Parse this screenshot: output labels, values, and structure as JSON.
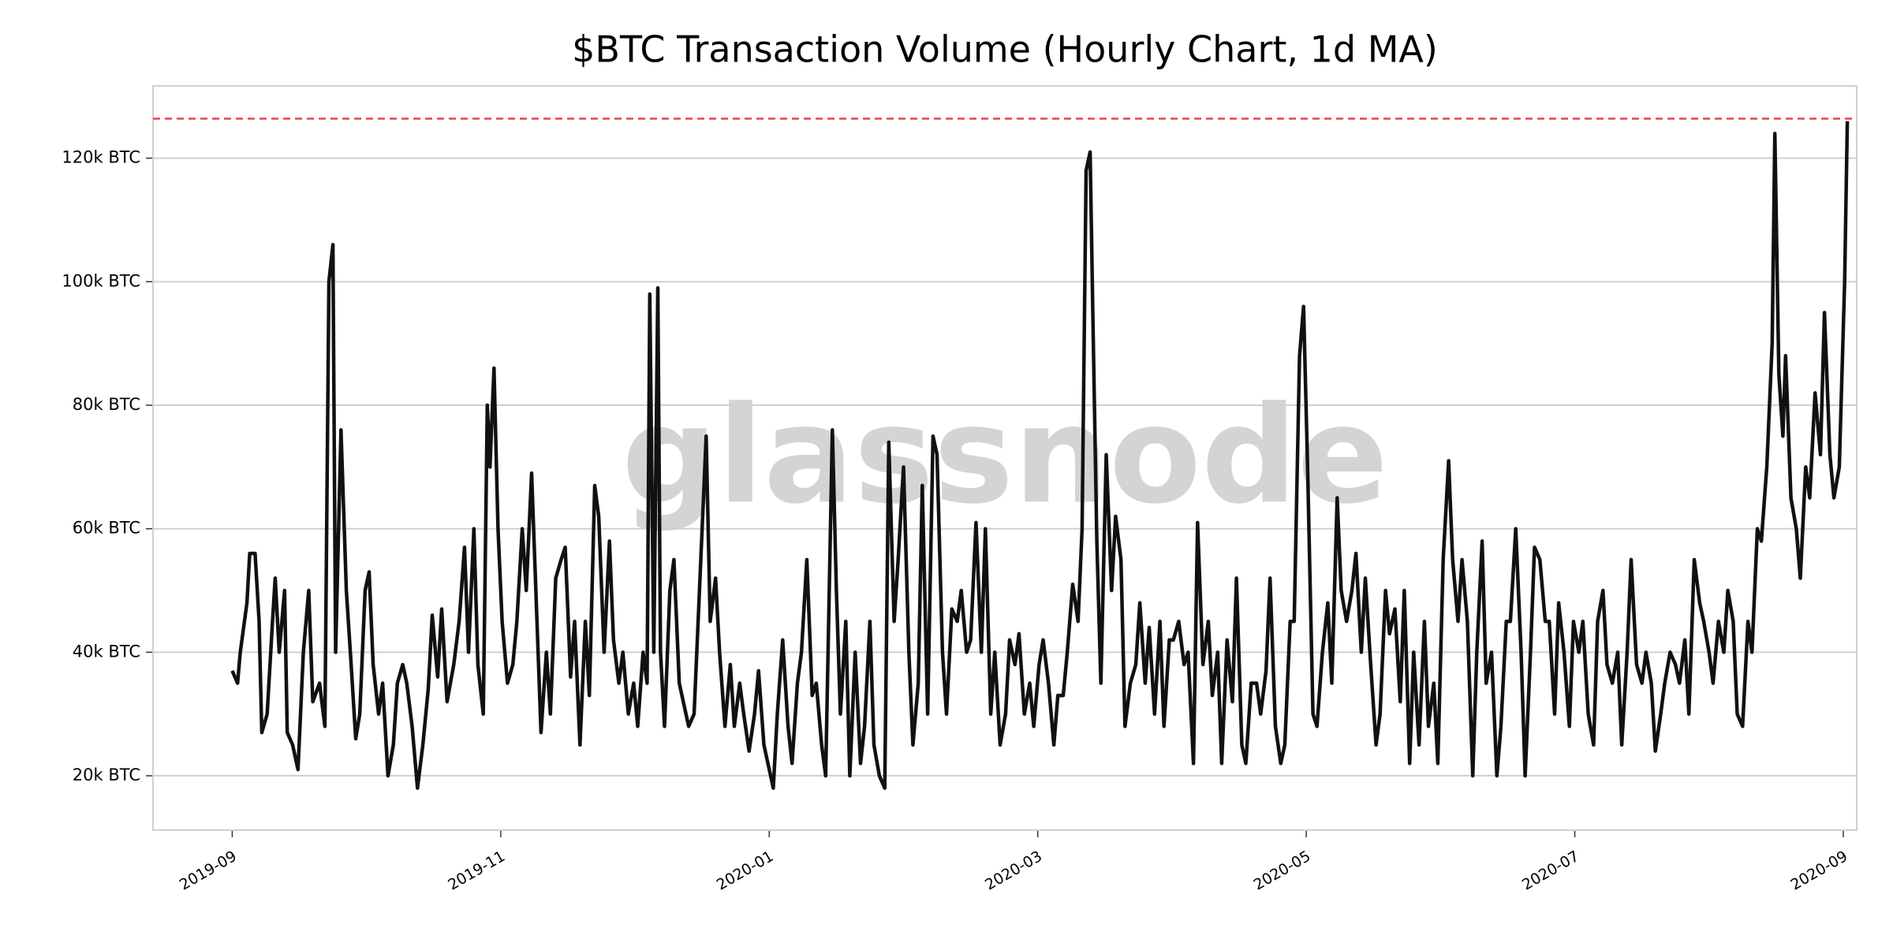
{
  "chart_data": {
    "type": "line",
    "title": "$BTC Transaction Volume (Hourly Chart, 1d MA)",
    "watermark": "glassnode",
    "color": "#111111",
    "grid": true,
    "hline": {
      "value": 126400,
      "color": "#e8434f"
    },
    "xlim": [
      -0.59,
      12.1
    ],
    "xticks": [
      {
        "value": 0,
        "label": "2019-09"
      },
      {
        "value": 2,
        "label": "2019-11"
      },
      {
        "value": 4,
        "label": "2020-01"
      },
      {
        "value": 6,
        "label": "2020-03"
      },
      {
        "value": 8,
        "label": "2020-05"
      },
      {
        "value": 10,
        "label": "2020-07"
      },
      {
        "value": 12,
        "label": "2020-09"
      }
    ],
    "ylim": [
      11200,
      131700
    ],
    "yticks": [
      {
        "value": 20000,
        "label": "20k BTC"
      },
      {
        "value": 40000,
        "label": "40k BTC"
      },
      {
        "value": 60000,
        "label": "60k BTC"
      },
      {
        "value": 80000,
        "label": "80k BTC"
      },
      {
        "value": 100000,
        "label": "100k BTC"
      },
      {
        "value": 120000,
        "label": "120k BTC"
      }
    ],
    "x": [
      0.0,
      0.04,
      0.06,
      0.11,
      0.13,
      0.17,
      0.2,
      0.22,
      0.26,
      0.3,
      0.32,
      0.35,
      0.39,
      0.41,
      0.45,
      0.49,
      0.53,
      0.57,
      0.6,
      0.65,
      0.69,
      0.72,
      0.75,
      0.77,
      0.81,
      0.85,
      0.88,
      0.92,
      0.95,
      0.99,
      1.02,
      1.05,
      1.09,
      1.12,
      1.16,
      1.2,
      1.23,
      1.27,
      1.3,
      1.34,
      1.38,
      1.42,
      1.46,
      1.49,
      1.53,
      1.56,
      1.6,
      1.65,
      1.69,
      1.73,
      1.76,
      1.8,
      1.83,
      1.87,
      1.9,
      1.92,
      1.95,
      1.98,
      2.01,
      2.05,
      2.09,
      2.12,
      2.16,
      2.19,
      2.23,
      2.27,
      2.3,
      2.34,
      2.37,
      2.41,
      2.45,
      2.48,
      2.52,
      2.55,
      2.59,
      2.63,
      2.66,
      2.7,
      2.73,
      2.77,
      2.81,
      2.84,
      2.88,
      2.91,
      2.95,
      2.99,
      3.02,
      3.06,
      3.09,
      3.11,
      3.14,
      3.17,
      3.19,
      3.22,
      3.26,
      3.29,
      3.33,
      3.36,
      3.4,
      3.44,
      3.48,
      3.53,
      3.56,
      3.6,
      3.63,
      3.67,
      3.71,
      3.74,
      3.78,
      3.81,
      3.85,
      3.89,
      3.92,
      3.96,
      3.99,
      4.03,
      4.06,
      4.1,
      4.14,
      4.17,
      4.21,
      4.24,
      4.28,
      4.32,
      4.35,
      4.39,
      4.42,
      4.47,
      4.5,
      4.53,
      4.57,
      4.6,
      4.64,
      4.68,
      4.71,
      4.75,
      4.78,
      4.82,
      4.86,
      4.89,
      4.93,
      4.96,
      5.0,
      5.04,
      5.07,
      5.11,
      5.14,
      5.18,
      5.22,
      5.25,
      5.29,
      5.32,
      5.36,
      5.4,
      5.43,
      5.47,
      5.5,
      5.54,
      5.58,
      5.61,
      5.65,
      5.68,
      5.72,
      5.76,
      5.79,
      5.83,
      5.86,
      5.9,
      5.94,
      5.97,
      6.01,
      6.04,
      6.08,
      6.12,
      6.15,
      6.19,
      6.22,
      6.26,
      6.3,
      6.33,
      6.36,
      6.39,
      6.41,
      6.44,
      6.47,
      6.51,
      6.55,
      6.58,
      6.62,
      6.65,
      6.69,
      6.73,
      6.76,
      6.8,
      6.83,
      6.87,
      6.91,
      6.94,
      6.98,
      7.01,
      7.05,
      7.09,
      7.12,
      7.16,
      7.19,
      7.23,
      7.27,
      7.3,
      7.34,
      7.37,
      7.41,
      7.45,
      7.48,
      7.52,
      7.55,
      7.59,
      7.63,
      7.66,
      7.7,
      7.73,
      7.77,
      7.81,
      7.84,
      7.88,
      7.91,
      7.95,
      7.98,
      8.01,
      8.05,
      8.08,
      8.12,
      8.16,
      8.19,
      8.23,
      8.26,
      8.3,
      8.34,
      8.37,
      8.41,
      8.44,
      8.48,
      8.52,
      8.55,
      8.59,
      8.62,
      8.66,
      8.7,
      8.73,
      8.77,
      8.8,
      8.84,
      8.88,
      8.91,
      8.95,
      8.98,
      9.02,
      9.06,
      9.09,
      9.13,
      9.16,
      9.2,
      9.24,
      9.27,
      9.31,
      9.34,
      9.38,
      9.42,
      9.45,
      9.49,
      9.52,
      9.56,
      9.6,
      9.63,
      9.67,
      9.7,
      9.74,
      9.78,
      9.81,
      9.85,
      9.88,
      9.92,
      9.96,
      9.99,
      10.03,
      10.06,
      10.1,
      10.14,
      10.17,
      10.21,
      10.24,
      10.28,
      10.32,
      10.35,
      10.39,
      10.42,
      10.46,
      10.5,
      10.53,
      10.57,
      10.6,
      10.64,
      10.67,
      10.71,
      10.75,
      10.78,
      10.82,
      10.85,
      10.89,
      10.93,
      10.96,
      11.0,
      11.03,
      11.07,
      11.11,
      11.14,
      11.18,
      11.21,
      11.25,
      11.29,
      11.32,
      11.36,
      11.39,
      11.43,
      11.47,
      11.49,
      11.52,
      11.55,
      11.57,
      11.61,
      11.65,
      11.68,
      11.72,
      11.75,
      11.79,
      11.83,
      11.86,
      11.9,
      11.93,
      11.97,
      12.01,
      12.03
    ],
    "values": [
      37000,
      35000,
      40000,
      48000,
      56000,
      56000,
      45000,
      27000,
      30000,
      45000,
      52000,
      40000,
      50000,
      27000,
      25000,
      21000,
      40000,
      50000,
      32000,
      35000,
      28000,
      100000,
      106000,
      40000,
      76000,
      50000,
      40000,
      26000,
      30000,
      50000,
      53000,
      38000,
      30000,
      35000,
      20000,
      25000,
      35000,
      38000,
      35000,
      28000,
      18000,
      25000,
      34000,
      46000,
      36000,
      47000,
      32000,
      38000,
      45000,
      57000,
      40000,
      60000,
      38000,
      30000,
      80000,
      70000,
      86000,
      60000,
      45000,
      35000,
      38000,
      45000,
      60000,
      50000,
      69000,
      45000,
      27000,
      40000,
      30000,
      52000,
      55000,
      57000,
      36000,
      45000,
      25000,
      45000,
      33000,
      67000,
      62000,
      40000,
      58000,
      42000,
      35000,
      40000,
      30000,
      35000,
      28000,
      40000,
      35000,
      98000,
      40000,
      99000,
      40000,
      28000,
      50000,
      55000,
      35000,
      32000,
      28000,
      30000,
      50000,
      75000,
      45000,
      52000,
      40000,
      28000,
      38000,
      28000,
      35000,
      30000,
      24000,
      30000,
      37000,
      25000,
      22000,
      18000,
      30000,
      42000,
      28000,
      22000,
      35000,
      40000,
      55000,
      33000,
      35000,
      25000,
      20000,
      76000,
      50000,
      30000,
      45000,
      20000,
      40000,
      22000,
      28000,
      45000,
      25000,
      20000,
      18000,
      74000,
      45000,
      55000,
      70000,
      40000,
      25000,
      35000,
      67000,
      30000,
      75000,
      72000,
      40000,
      30000,
      47000,
      45000,
      50000,
      40000,
      42000,
      61000,
      40000,
      60000,
      30000,
      40000,
      25000,
      30000,
      42000,
      38000,
      43000,
      30000,
      35000,
      28000,
      38000,
      42000,
      35000,
      25000,
      33000,
      33000,
      40000,
      51000,
      45000,
      60000,
      118000,
      121000,
      95000,
      58000,
      35000,
      72000,
      50000,
      62000,
      55000,
      28000,
      35000,
      38000,
      48000,
      35000,
      44000,
      30000,
      45000,
      28000,
      42000,
      42000,
      45000,
      38000,
      40000,
      22000,
      61000,
      38000,
      45000,
      33000,
      40000,
      22000,
      42000,
      32000,
      52000,
      25000,
      22000,
      35000,
      35000,
      30000,
      37000,
      52000,
      28000,
      22000,
      25000,
      45000,
      45000,
      88000,
      96000,
      70000,
      30000,
      28000,
      40000,
      48000,
      35000,
      65000,
      50000,
      45000,
      50000,
      56000,
      40000,
      52000,
      38000,
      25000,
      30000,
      50000,
      43000,
      47000,
      32000,
      50000,
      22000,
      40000,
      25000,
      45000,
      28000,
      35000,
      22000,
      55000,
      71000,
      55000,
      45000,
      55000,
      45000,
      20000,
      40000,
      58000,
      35000,
      40000,
      20000,
      28000,
      45000,
      45000,
      60000,
      40000,
      20000,
      40000,
      57000,
      55000,
      45000,
      45000,
      30000,
      48000,
      40000,
      28000,
      45000,
      40000,
      45000,
      30000,
      25000,
      45000,
      50000,
      38000,
      35000,
      40000,
      25000,
      40000,
      55000,
      38000,
      35000,
      40000,
      35000,
      24000,
      30000,
      35000,
      40000,
      38000,
      35000,
      42000,
      30000,
      55000,
      48000,
      45000,
      40000,
      35000,
      45000,
      40000,
      50000,
      45000,
      30000,
      28000,
      45000,
      40000,
      60000,
      58000,
      70000,
      90000,
      124000,
      85000,
      75000,
      88000,
      65000,
      60000,
      52000,
      70000,
      65000,
      82000,
      72000,
      95000,
      72000,
      65000,
      70000,
      100000,
      126000
    ]
  }
}
